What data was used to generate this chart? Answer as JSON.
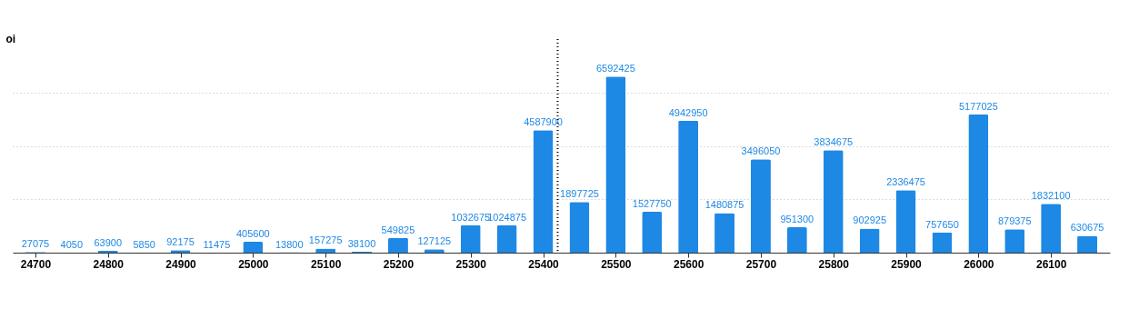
{
  "chart_data": {
    "type": "bar",
    "ylabel": "oi",
    "x": [
      24700,
      24750,
      24800,
      24850,
      24900,
      24950,
      25000,
      25050,
      25100,
      25150,
      25200,
      25250,
      25300,
      25350,
      25400,
      25450,
      25500,
      25550,
      25600,
      25650,
      25700,
      25750,
      25800,
      25850,
      25900,
      25950,
      26000,
      26050,
      26100,
      26150
    ],
    "series": [
      {
        "color": "#1e88e5",
        "values": [
          27075,
          4050,
          63900,
          5850,
          92175,
          11475,
          405600,
          13800,
          157275,
          38100,
          549825,
          127125,
          1032675,
          1024875,
          4587900,
          1897725,
          6592425,
          1527750,
          4942950,
          1480875,
          3496050,
          951300,
          3834675,
          902925,
          2336475,
          757650,
          5177025,
          879375,
          1832100,
          630675
        ]
      }
    ],
    "xlim": [
      24675,
      26175
    ],
    "xticks": [
      24700,
      24800,
      24900,
      25000,
      25100,
      25200,
      25300,
      25400,
      25500,
      25600,
      25700,
      25800,
      25900,
      26000,
      26100
    ],
    "ylim": [
      0,
      8000000
    ],
    "yticks": [
      {
        "value": 0,
        "label": null
      },
      {
        "value": 2000000,
        "label": null
      },
      {
        "value": 4000000,
        "label": null
      },
      {
        "value": 6000000,
        "label": null
      }
    ],
    "grid": "y",
    "tick_labels": "x",
    "data_labels": true,
    "legend": false,
    "ref_lines": [
      {
        "axis": "x",
        "value": 25420,
        "color": "#000000",
        "line_style": "dotted"
      }
    ]
  }
}
